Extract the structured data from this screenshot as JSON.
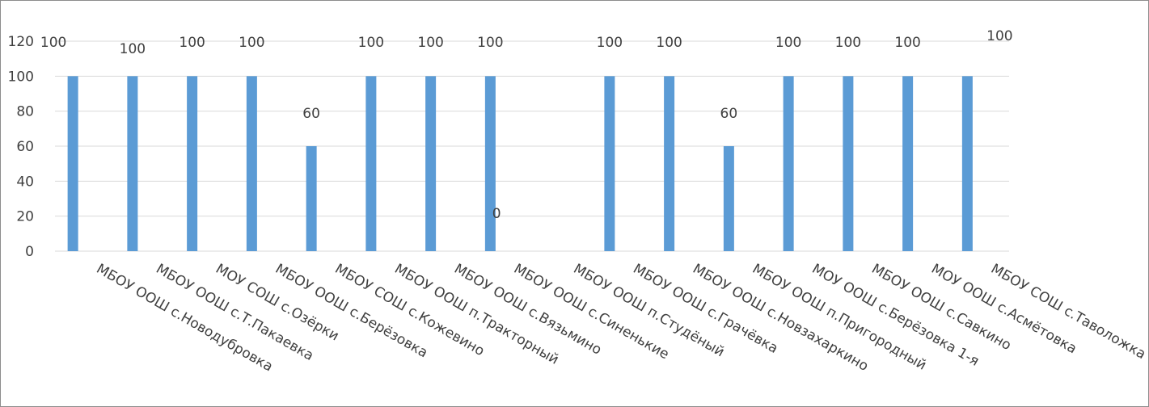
{
  "chart_data": {
    "type": "bar",
    "title": "",
    "xlabel": "",
    "ylabel": "",
    "ylim": [
      0,
      120
    ],
    "yticks": [
      0,
      20,
      40,
      60,
      80,
      100,
      120
    ],
    "grid": true,
    "bar_color": "#5b9bd5",
    "categories": [
      "МБОУ ООШ с.Новодубровка",
      "МБОУ ООШ с.Т.Пакаевка",
      "МОУ СОШ с.Озёрки",
      "МБОУ ООШ с.Берёзовка",
      "МБОУ СОШ с.Кожевино",
      "МБОУ ООШ п.Тракторный",
      "МБОУ ООШ с.Вязьмино",
      "МБОУ ООШ с.Синенькие",
      "МБОУ ООШ п.Студёный",
      "МБОУ ООШ с.Грачёвка",
      "МБОУ ООШ с.Новзахаркино",
      "МБОУ ООШ п.Пригородный",
      "МОУ ООШ с.Берёзовка 1-я",
      "МБОУ ООШ с.Савкино",
      "МОУ ООШ с.Асмётовка",
      "МБОУ СОШ с.Таволожка"
    ],
    "values": [
      100,
      100,
      100,
      100,
      60,
      100,
      100,
      100,
      0,
      100,
      100,
      60,
      100,
      100,
      100,
      100
    ],
    "data_labels": [
      "100",
      "100",
      "100",
      "100",
      "60",
      "100",
      "100",
      "100",
      "0",
      "100",
      "100",
      "60",
      "100",
      "100",
      "100",
      "100"
    ]
  }
}
